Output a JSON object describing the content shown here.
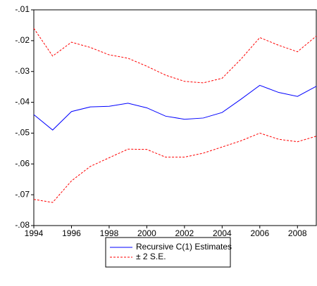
{
  "chart_data": {
    "type": "line",
    "x": [
      1994,
      1995,
      1996,
      1997,
      1998,
      1999,
      2000,
      2001,
      2002,
      2003,
      2004,
      2005,
      2006,
      2007,
      2008,
      2009
    ],
    "series": [
      {
        "name": "Recursive C(1) Estimates",
        "color": "#0000ff",
        "dashed": false,
        "values": [
          -0.044,
          -0.049,
          -0.043,
          -0.0415,
          -0.0413,
          -0.0403,
          -0.0418,
          -0.0445,
          -0.0455,
          -0.0451,
          -0.0433,
          -0.039,
          -0.0345,
          -0.0368,
          -0.0381,
          -0.0348
        ]
      },
      {
        "name": "± 2 S.E.",
        "color": "#ff0000",
        "dashed": true,
        "values": [
          -0.016,
          -0.025,
          -0.0205,
          -0.0222,
          -0.0246,
          -0.0257,
          -0.0283,
          -0.0312,
          -0.0332,
          -0.0337,
          -0.0322,
          -0.026,
          -0.019,
          -0.0215,
          -0.0236,
          -0.0185
        ]
      },
      {
        "color": "#ff0000",
        "dashed": true,
        "values": [
          -0.0715,
          -0.0725,
          -0.0655,
          -0.0608,
          -0.058,
          -0.0552,
          -0.0553,
          -0.0578,
          -0.0578,
          -0.0565,
          -0.0545,
          -0.0525,
          -0.05,
          -0.052,
          -0.0528,
          -0.051
        ]
      }
    ],
    "xlim": [
      1994,
      2009
    ],
    "xticks": [
      1994,
      1996,
      1998,
      2000,
      2002,
      2004,
      2006,
      2008
    ],
    "ylim": [
      -0.08,
      -0.01
    ],
    "yticks": [
      {
        "value": -0.08,
        "label": "-.08"
      },
      {
        "value": -0.07,
        "label": "-.07"
      },
      {
        "value": -0.06,
        "label": "-.06"
      },
      {
        "value": -0.05,
        "label": "-.05"
      },
      {
        "value": -0.04,
        "label": "-.04"
      },
      {
        "value": -0.03,
        "label": "-.03"
      },
      {
        "value": -0.02,
        "label": "-.02"
      },
      {
        "value": -0.01,
        "label": "-.01"
      }
    ],
    "grid": false,
    "legend": "bottom"
  }
}
